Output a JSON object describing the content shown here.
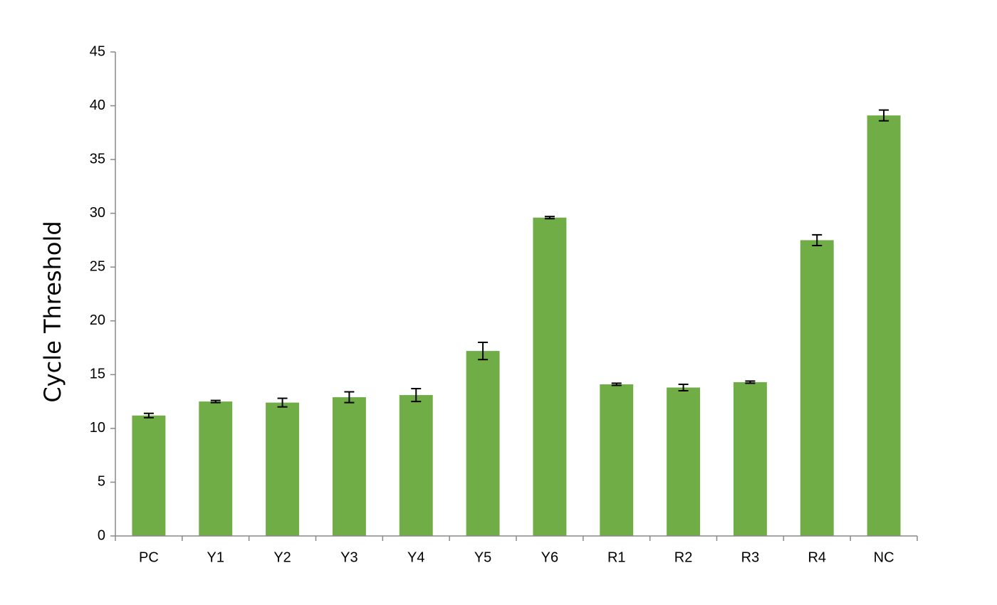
{
  "chart_data": {
    "type": "bar",
    "ylabel": "Cycle Threshold",
    "categories": [
      "PC",
      "Y1",
      "Y2",
      "Y3",
      "Y4",
      "Y5",
      "Y6",
      "R1",
      "R2",
      "R3",
      "R4",
      "NC"
    ],
    "values": [
      11.2,
      12.5,
      12.4,
      12.9,
      13.1,
      17.2,
      29.6,
      14.1,
      13.8,
      14.3,
      27.5,
      39.1
    ],
    "errors": [
      0.2,
      0.1,
      0.4,
      0.5,
      0.6,
      0.8,
      0.1,
      0.1,
      0.3,
      0.1,
      0.5,
      0.5
    ],
    "color": "#70ad47",
    "ylim": [
      0,
      45
    ],
    "yticks": [
      0,
      5,
      10,
      15,
      20,
      25,
      30,
      35,
      40,
      45
    ],
    "grid": false
  }
}
